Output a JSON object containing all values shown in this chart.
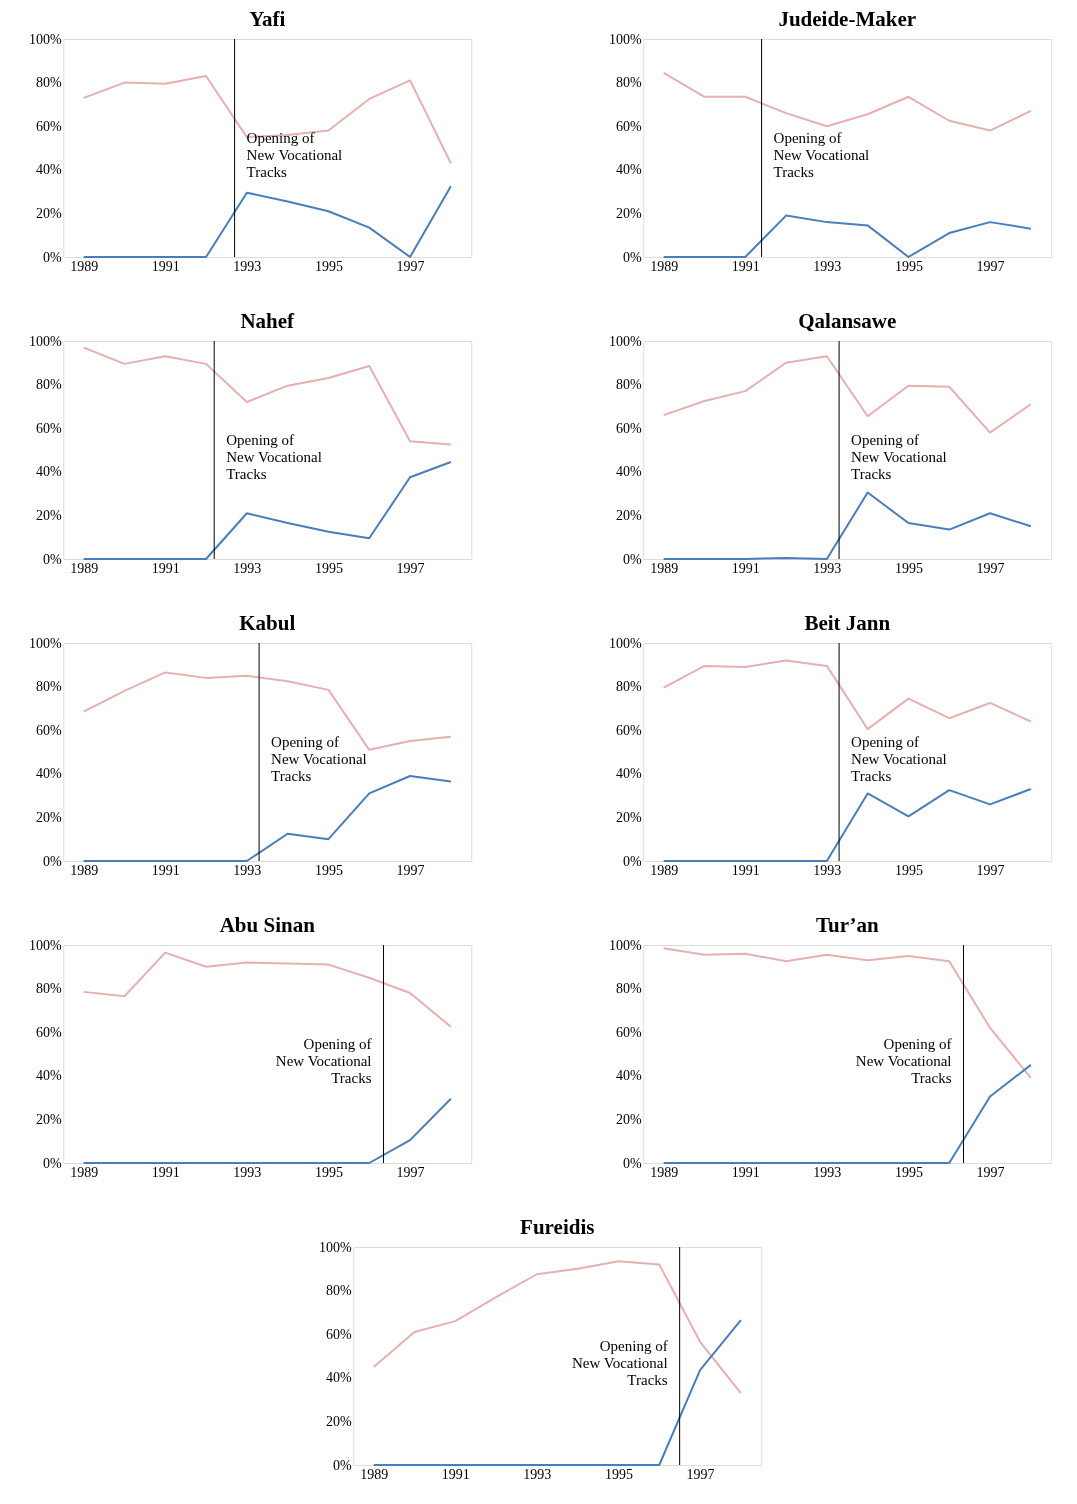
{
  "chart_data": [
    {
      "type": "line",
      "title": "Yafi",
      "x": [
        1989,
        1990,
        1991,
        1992,
        1993,
        1994,
        1995,
        1996,
        1997,
        1998
      ],
      "xlim": [
        1988.5,
        1998.5
      ],
      "xticks": [
        1989,
        1991,
        1993,
        1995,
        1997
      ],
      "ylim": [
        0,
        100
      ],
      "yticks": [
        {
          "value": 0,
          "label": "0%"
        },
        {
          "value": 20,
          "label": "20%"
        },
        {
          "value": 40,
          "label": "40%"
        },
        {
          "value": 60,
          "label": "60%"
        },
        {
          "value": 80,
          "label": "80%"
        },
        {
          "value": 100,
          "label": "100%"
        }
      ],
      "grid": false,
      "marker": "none",
      "line_style": "solid",
      "series": [
        {
          "color": "#e6b0b0",
          "values": [
            73,
            80,
            79.5,
            83,
            55,
            56,
            58,
            72.5,
            81,
            43
          ]
        },
        {
          "color": "#4a7ebb",
          "values": [
            0,
            0,
            0,
            0,
            29.5,
            25.5,
            21,
            13.5,
            0,
            32.5
          ]
        }
      ],
      "ref_lines": [
        {
          "axis": "x",
          "value": 1992.7,
          "color": "#000000"
        }
      ],
      "annotations": [
        "Opening of\nNew Vocational\nTracks"
      ]
    },
    {
      "type": "line",
      "title": "Judeide-Maker",
      "x": [
        1989,
        1990,
        1991,
        1992,
        1993,
        1994,
        1995,
        1996,
        1997,
        1998
      ],
      "xlim": [
        1988.5,
        1998.5
      ],
      "xticks": [
        1989,
        1991,
        1993,
        1995,
        1997
      ],
      "ylim": [
        0,
        100
      ],
      "yticks": [
        {
          "value": 0,
          "label": "0%"
        },
        {
          "value": 20,
          "label": "20%"
        },
        {
          "value": 40,
          "label": "40%"
        },
        {
          "value": 60,
          "label": "60%"
        },
        {
          "value": 80,
          "label": "80%"
        },
        {
          "value": 100,
          "label": "100%"
        }
      ],
      "grid": false,
      "marker": "none",
      "line_style": "solid",
      "series": [
        {
          "color": "#e6b0b0",
          "values": [
            84.5,
            73.5,
            73.5,
            66,
            60,
            65.5,
            73.5,
            62.5,
            58,
            67
          ]
        },
        {
          "color": "#4a7ebb",
          "values": [
            0,
            0,
            0,
            19,
            16,
            14.5,
            0,
            11,
            16,
            13
          ]
        }
      ],
      "ref_lines": [
        {
          "axis": "x",
          "value": 1991.4,
          "color": "#000000"
        }
      ],
      "annotations": [
        "Opening of\nNew Vocational\nTracks"
      ]
    },
    {
      "type": "line",
      "title": "Nahef",
      "x": [
        1989,
        1990,
        1991,
        1992,
        1993,
        1994,
        1995,
        1996,
        1997,
        1998
      ],
      "xlim": [
        1988.5,
        1998.5
      ],
      "xticks": [
        1989,
        1991,
        1993,
        1995,
        1997
      ],
      "ylim": [
        0,
        100
      ],
      "yticks": [
        {
          "value": 0,
          "label": "0%"
        },
        {
          "value": 20,
          "label": "20%"
        },
        {
          "value": 40,
          "label": "40%"
        },
        {
          "value": 60,
          "label": "60%"
        },
        {
          "value": 80,
          "label": "80%"
        },
        {
          "value": 100,
          "label": "100%"
        }
      ],
      "grid": false,
      "marker": "none",
      "line_style": "solid",
      "series": [
        {
          "color": "#e6b0b0",
          "values": [
            97,
            89.5,
            93,
            89.5,
            72,
            79.5,
            83,
            88.5,
            54,
            52.5
          ]
        },
        {
          "color": "#4a7ebb",
          "values": [
            0,
            0,
            0,
            0,
            21,
            16.5,
            12.5,
            9.5,
            37.5,
            44.5
          ]
        }
      ],
      "ref_lines": [
        {
          "axis": "x",
          "value": 1992.2,
          "color": "#000000"
        }
      ],
      "annotations": [
        "Opening of\nNew Vocational\nTracks"
      ]
    },
    {
      "type": "line",
      "title": "Qalansawe",
      "x": [
        1989,
        1990,
        1991,
        1992,
        1993,
        1994,
        1995,
        1996,
        1997,
        1998
      ],
      "xlim": [
        1988.5,
        1998.5
      ],
      "xticks": [
        1989,
        1991,
        1993,
        1995,
        1997
      ],
      "ylim": [
        0,
        100
      ],
      "yticks": [
        {
          "value": 0,
          "label": "0%"
        },
        {
          "value": 20,
          "label": "20%"
        },
        {
          "value": 40,
          "label": "40%"
        },
        {
          "value": 60,
          "label": "60%"
        },
        {
          "value": 80,
          "label": "80%"
        },
        {
          "value": 100,
          "label": "100%"
        }
      ],
      "grid": false,
      "marker": "none",
      "line_style": "solid",
      "series": [
        {
          "color": "#e6b0b0",
          "values": [
            66,
            72.5,
            77,
            90,
            93,
            65.5,
            79.5,
            79,
            58,
            71
          ]
        },
        {
          "color": "#4a7ebb",
          "values": [
            0,
            0,
            0,
            0.5,
            0,
            30.5,
            16.5,
            13.5,
            21,
            15
          ]
        }
      ],
      "ref_lines": [
        {
          "axis": "x",
          "value": 1993.3,
          "color": "#000000"
        }
      ],
      "annotations": [
        "Opening of\nNew Vocational\nTracks"
      ]
    },
    {
      "type": "line",
      "title": "Kabul",
      "x": [
        1989,
        1990,
        1991,
        1992,
        1993,
        1994,
        1995,
        1996,
        1997,
        1998
      ],
      "xlim": [
        1988.5,
        1998.5
      ],
      "xticks": [
        1989,
        1991,
        1993,
        1995,
        1997
      ],
      "ylim": [
        0,
        100
      ],
      "yticks": [
        {
          "value": 0,
          "label": "0%"
        },
        {
          "value": 20,
          "label": "20%"
        },
        {
          "value": 40,
          "label": "40%"
        },
        {
          "value": 60,
          "label": "60%"
        },
        {
          "value": 80,
          "label": "80%"
        },
        {
          "value": 100,
          "label": "100%"
        }
      ],
      "grid": false,
      "marker": "none",
      "line_style": "solid",
      "series": [
        {
          "color": "#e6b0b0",
          "values": [
            68.5,
            78,
            86.5,
            84,
            85,
            82.5,
            78.5,
            51,
            55,
            57
          ]
        },
        {
          "color": "#4a7ebb",
          "values": [
            0,
            0,
            0,
            0,
            0,
            12.5,
            10,
            31,
            39,
            36.5
          ]
        }
      ],
      "ref_lines": [
        {
          "axis": "x",
          "value": 1993.3,
          "color": "#000000"
        }
      ],
      "annotations": [
        "Opening of\nNew Vocational\nTracks"
      ]
    },
    {
      "type": "line",
      "title": "Beit Jann",
      "x": [
        1989,
        1990,
        1991,
        1992,
        1993,
        1994,
        1995,
        1996,
        1997,
        1998
      ],
      "xlim": [
        1988.5,
        1998.5
      ],
      "xticks": [
        1989,
        1991,
        1993,
        1995,
        1997
      ],
      "ylim": [
        0,
        100
      ],
      "yticks": [
        {
          "value": 0,
          "label": "0%"
        },
        {
          "value": 20,
          "label": "20%"
        },
        {
          "value": 40,
          "label": "40%"
        },
        {
          "value": 60,
          "label": "60%"
        },
        {
          "value": 80,
          "label": "80%"
        },
        {
          "value": 100,
          "label": "100%"
        }
      ],
      "grid": false,
      "marker": "none",
      "line_style": "solid",
      "series": [
        {
          "color": "#e6b0b0",
          "values": [
            79.5,
            89.5,
            89,
            92,
            89.5,
            60.5,
            74.5,
            65.5,
            72.5,
            64
          ]
        },
        {
          "color": "#4a7ebb",
          "values": [
            0,
            0,
            0,
            0,
            0,
            31,
            20.5,
            32.5,
            26,
            33
          ]
        }
      ],
      "ref_lines": [
        {
          "axis": "x",
          "value": 1993.3,
          "color": "#000000"
        }
      ],
      "annotations": [
        "Opening of\nNew Vocational\nTracks"
      ]
    },
    {
      "type": "line",
      "title": "Abu Sinan",
      "x": [
        1989,
        1990,
        1991,
        1992,
        1993,
        1994,
        1995,
        1996,
        1997,
        1998
      ],
      "xlim": [
        1988.5,
        1998.5
      ],
      "xticks": [
        1989,
        1991,
        1993,
        1995,
        1997
      ],
      "ylim": [
        0,
        100
      ],
      "yticks": [
        {
          "value": 0,
          "label": "0%"
        },
        {
          "value": 20,
          "label": "20%"
        },
        {
          "value": 40,
          "label": "40%"
        },
        {
          "value": 60,
          "label": "60%"
        },
        {
          "value": 80,
          "label": "80%"
        },
        {
          "value": 100,
          "label": "100%"
        }
      ],
      "grid": false,
      "marker": "none",
      "line_style": "solid",
      "series": [
        {
          "color": "#e6b0b0",
          "values": [
            78.5,
            76.5,
            96.5,
            90,
            92,
            91.5,
            91,
            85,
            78,
            62.5
          ]
        },
        {
          "color": "#4a7ebb",
          "values": [
            0,
            0,
            0,
            0,
            0,
            0,
            0,
            0,
            10.5,
            29.5
          ]
        }
      ],
      "ref_lines": [
        {
          "axis": "x",
          "value": 1996.35,
          "color": "#000000"
        }
      ],
      "annotations": [
        "Opening of\nNew Vocational\nTracks"
      ]
    },
    {
      "type": "line",
      "title": "Tur’an",
      "x": [
        1989,
        1990,
        1991,
        1992,
        1993,
        1994,
        1995,
        1996,
        1997,
        1998
      ],
      "xlim": [
        1988.5,
        1998.5
      ],
      "xticks": [
        1989,
        1991,
        1993,
        1995,
        1997
      ],
      "ylim": [
        0,
        100
      ],
      "yticks": [
        {
          "value": 0,
          "label": "0%"
        },
        {
          "value": 20,
          "label": "20%"
        },
        {
          "value": 40,
          "label": "40%"
        },
        {
          "value": 60,
          "label": "60%"
        },
        {
          "value": 80,
          "label": "80%"
        },
        {
          "value": 100,
          "label": "100%"
        }
      ],
      "grid": false,
      "marker": "none",
      "line_style": "solid",
      "series": [
        {
          "color": "#e6b0b0",
          "values": [
            98.5,
            95.5,
            96,
            92.5,
            95.5,
            93,
            95,
            92.5,
            62,
            39
          ]
        },
        {
          "color": "#4a7ebb",
          "values": [
            0,
            0,
            0,
            0,
            0,
            0,
            0,
            0,
            30.5,
            45
          ]
        }
      ],
      "ref_lines": [
        {
          "axis": "x",
          "value": 1996.35,
          "color": "#000000"
        }
      ],
      "annotations": [
        "Opening of\nNew Vocational\nTracks"
      ]
    },
    {
      "type": "line",
      "title": "Fureidis",
      "x": [
        1989,
        1990,
        1991,
        1992,
        1993,
        1994,
        1995,
        1996,
        1997,
        1998
      ],
      "xlim": [
        1988.5,
        1998.5
      ],
      "xticks": [
        1989,
        1991,
        1993,
        1995,
        1997
      ],
      "ylim": [
        0,
        100
      ],
      "yticks": [
        {
          "value": 0,
          "label": "0%"
        },
        {
          "value": 20,
          "label": "20%"
        },
        {
          "value": 40,
          "label": "40%"
        },
        {
          "value": 60,
          "label": "60%"
        },
        {
          "value": 80,
          "label": "80%"
        },
        {
          "value": 100,
          "label": "100%"
        }
      ],
      "grid": false,
      "marker": "none",
      "line_style": "solid",
      "series": [
        {
          "color": "#e6b0b0",
          "values": [
            45,
            61,
            66,
            77,
            87.5,
            90,
            93.5,
            92,
            56.5,
            33
          ]
        },
        {
          "color": "#4a7ebb",
          "values": [
            0,
            0,
            0,
            0,
            0,
            0,
            0,
            0,
            43.5,
            66.5
          ]
        }
      ],
      "ref_lines": [
        {
          "axis": "x",
          "value": 1996.5,
          "color": "#000000"
        }
      ],
      "annotations": [
        "Opening of\nNew Vocational\nTracks"
      ]
    }
  ]
}
